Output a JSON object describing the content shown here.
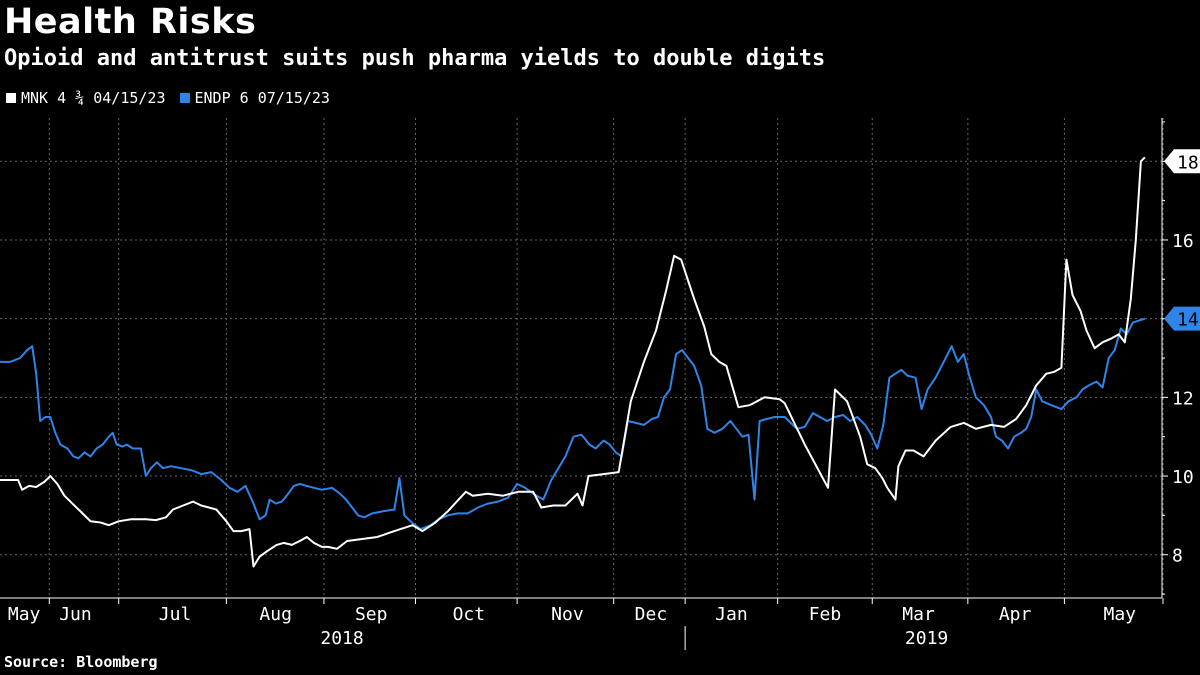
{
  "header": {
    "title": "Health Risks",
    "subtitle": "Opioid and antitrust suits push pharma yields to double digits"
  },
  "source": "Source: Bloomberg",
  "colors": {
    "background": "#000000",
    "mnk": "#ffffff",
    "endp": "#2f84e8",
    "grid": "#666666"
  },
  "chart_data": {
    "type": "line",
    "title": "Health Risks",
    "subtitle": "Opioid and antitrust suits push pharma yields to double digits",
    "xlabel": "",
    "ylabel": "",
    "ylim": [
      6.9,
      19.1
    ],
    "y_ticks": [
      8,
      10,
      12,
      14,
      16,
      18
    ],
    "x_range": [
      0,
      1155
    ],
    "month_ticks": [
      {
        "label": "May",
        "x": 24
      },
      {
        "label": "Jun",
        "x": 75
      },
      {
        "label": "Jul",
        "x": 174
      },
      {
        "label": "Aug",
        "x": 274
      },
      {
        "label": "Sep",
        "x": 369
      },
      {
        "label": "Oct",
        "x": 466
      },
      {
        "label": "Nov",
        "x": 564
      },
      {
        "label": "Dec",
        "x": 647
      },
      {
        "label": "Jan",
        "x": 727
      },
      {
        "label": "Feb",
        "x": 820
      },
      {
        "label": "Mar",
        "x": 913
      },
      {
        "label": "Apr",
        "x": 1009
      },
      {
        "label": "May",
        "x": 1113
      }
    ],
    "gridlines_x": [
      49,
      118,
      225,
      322,
      413,
      514,
      610,
      681,
      773,
      867,
      962,
      1058,
      1156
    ],
    "years": [
      {
        "label": "2018",
        "x": 340
      },
      {
        "label": "2019",
        "x": 921
      }
    ],
    "year_divider_x": 681,
    "series": [
      {
        "name": "MNK 4 ¾ 04/15/23",
        "color": "#ffffff",
        "end_label": "18",
        "points": [
          [
            0,
            9.9
          ],
          [
            18,
            9.9
          ],
          [
            22,
            9.65
          ],
          [
            29,
            9.75
          ],
          [
            36,
            9.72
          ],
          [
            44,
            9.85
          ],
          [
            50,
            10.0
          ],
          [
            57,
            9.8
          ],
          [
            64,
            9.5
          ],
          [
            72,
            9.3
          ],
          [
            80,
            9.1
          ],
          [
            90,
            8.85
          ],
          [
            100,
            8.82
          ],
          [
            108,
            8.75
          ],
          [
            118,
            8.85
          ],
          [
            130,
            8.9
          ],
          [
            145,
            8.9
          ],
          [
            155,
            8.88
          ],
          [
            165,
            8.95
          ],
          [
            172,
            9.15
          ],
          [
            182,
            9.25
          ],
          [
            192,
            9.35
          ],
          [
            200,
            9.25
          ],
          [
            215,
            9.15
          ],
          [
            225,
            8.85
          ],
          [
            232,
            8.6
          ],
          [
            240,
            8.6
          ],
          [
            248,
            8.65
          ],
          [
            252,
            7.7
          ],
          [
            258,
            7.95
          ],
          [
            266,
            8.1
          ],
          [
            275,
            8.25
          ],
          [
            282,
            8.3
          ],
          [
            290,
            8.25
          ],
          [
            298,
            8.35
          ],
          [
            305,
            8.45
          ],
          [
            312,
            8.3
          ],
          [
            320,
            8.2
          ],
          [
            326,
            8.2
          ],
          [
            335,
            8.15
          ],
          [
            345,
            8.35
          ],
          [
            360,
            8.4
          ],
          [
            375,
            8.45
          ],
          [
            392,
            8.6
          ],
          [
            410,
            8.75
          ],
          [
            420,
            8.6
          ],
          [
            432,
            8.8
          ],
          [
            445,
            9.1
          ],
          [
            463,
            9.6
          ],
          [
            470,
            9.5
          ],
          [
            485,
            9.55
          ],
          [
            500,
            9.5
          ],
          [
            515,
            9.6
          ],
          [
            530,
            9.6
          ],
          [
            538,
            9.2
          ],
          [
            550,
            9.25
          ],
          [
            562,
            9.25
          ],
          [
            574,
            9.55
          ],
          [
            579,
            9.25
          ],
          [
            585,
            10.0
          ],
          [
            600,
            10.05
          ],
          [
            615,
            10.1
          ],
          [
            627,
            11.9
          ],
          [
            640,
            12.9
          ],
          [
            652,
            13.7
          ],
          [
            662,
            14.7
          ],
          [
            670,
            15.6
          ],
          [
            677,
            15.5
          ],
          [
            690,
            14.5
          ],
          [
            700,
            13.8
          ],
          [
            707,
            13.1
          ],
          [
            715,
            12.9
          ],
          [
            722,
            12.8
          ],
          [
            734,
            11.75
          ],
          [
            745,
            11.8
          ],
          [
            760,
            12.0
          ],
          [
            775,
            11.95
          ],
          [
            780,
            11.85
          ],
          [
            800,
            10.8
          ],
          [
            823,
            9.7
          ],
          [
            830,
            12.2
          ],
          [
            842,
            11.9
          ],
          [
            855,
            11.0
          ],
          [
            862,
            10.3
          ],
          [
            870,
            10.2
          ],
          [
            877,
            9.95
          ],
          [
            882,
            9.7
          ],
          [
            890,
            9.4
          ],
          [
            893,
            10.25
          ],
          [
            900,
            10.65
          ],
          [
            908,
            10.65
          ],
          [
            918,
            10.5
          ],
          [
            930,
            10.9
          ],
          [
            945,
            11.25
          ],
          [
            958,
            11.35
          ],
          [
            970,
            11.2
          ],
          [
            985,
            11.3
          ],
          [
            998,
            11.25
          ],
          [
            1010,
            11.45
          ],
          [
            1020,
            11.8
          ],
          [
            1030,
            12.3
          ],
          [
            1040,
            12.6
          ],
          [
            1048,
            12.65
          ],
          [
            1055,
            12.75
          ],
          [
            1060,
            15.5
          ],
          [
            1066,
            14.6
          ],
          [
            1074,
            14.2
          ],
          [
            1080,
            13.7
          ],
          [
            1088,
            13.25
          ],
          [
            1096,
            13.4
          ],
          [
            1105,
            13.5
          ],
          [
            1112,
            13.6
          ],
          [
            1118,
            13.4
          ],
          [
            1124,
            14.5
          ],
          [
            1129,
            16.0
          ],
          [
            1134,
            18.0
          ],
          [
            1138,
            18.1
          ]
        ]
      },
      {
        "name": "ENDP 6 07/15/23",
        "color": "#2f84e8",
        "end_label": "14",
        "points": [
          [
            0,
            12.9
          ],
          [
            10,
            12.9
          ],
          [
            20,
            13.0
          ],
          [
            27,
            13.2
          ],
          [
            32,
            13.3
          ],
          [
            36,
            12.6
          ],
          [
            40,
            11.4
          ],
          [
            45,
            11.5
          ],
          [
            50,
            11.5
          ],
          [
            55,
            11.1
          ],
          [
            60,
            10.8
          ],
          [
            67,
            10.7
          ],
          [
            73,
            10.5
          ],
          [
            78,
            10.45
          ],
          [
            84,
            10.6
          ],
          [
            90,
            10.5
          ],
          [
            96,
            10.7
          ],
          [
            102,
            10.8
          ],
          [
            108,
            11.0
          ],
          [
            112,
            11.1
          ],
          [
            116,
            10.8
          ],
          [
            122,
            10.75
          ],
          [
            126,
            10.8
          ],
          [
            132,
            10.7
          ],
          [
            140,
            10.7
          ],
          [
            145,
            10.0
          ],
          [
            150,
            10.2
          ],
          [
            156,
            10.35
          ],
          [
            162,
            10.2
          ],
          [
            170,
            10.25
          ],
          [
            180,
            10.2
          ],
          [
            190,
            10.15
          ],
          [
            200,
            10.05
          ],
          [
            210,
            10.1
          ],
          [
            220,
            9.9
          ],
          [
            228,
            9.7
          ],
          [
            236,
            9.6
          ],
          [
            244,
            9.75
          ],
          [
            252,
            9.3
          ],
          [
            258,
            8.9
          ],
          [
            264,
            9.0
          ],
          [
            268,
            9.4
          ],
          [
            274,
            9.3
          ],
          [
            280,
            9.35
          ],
          [
            285,
            9.5
          ],
          [
            292,
            9.75
          ],
          [
            298,
            9.8
          ],
          [
            305,
            9.75
          ],
          [
            312,
            9.7
          ],
          [
            320,
            9.65
          ],
          [
            330,
            9.7
          ],
          [
            338,
            9.55
          ],
          [
            344,
            9.4
          ],
          [
            350,
            9.2
          ],
          [
            356,
            9.0
          ],
          [
            362,
            8.95
          ],
          [
            370,
            9.05
          ],
          [
            380,
            9.1
          ],
          [
            392,
            9.15
          ],
          [
            397,
            9.95
          ],
          [
            402,
            9.0
          ],
          [
            410,
            8.8
          ],
          [
            418,
            8.65
          ],
          [
            428,
            8.75
          ],
          [
            436,
            8.9
          ],
          [
            445,
            9.0
          ],
          [
            455,
            9.05
          ],
          [
            465,
            9.05
          ],
          [
            475,
            9.2
          ],
          [
            485,
            9.3
          ],
          [
            495,
            9.35
          ],
          [
            505,
            9.45
          ],
          [
            514,
            9.8
          ],
          [
            522,
            9.7
          ],
          [
            530,
            9.55
          ],
          [
            540,
            9.4
          ],
          [
            548,
            9.9
          ],
          [
            555,
            10.2
          ],
          [
            562,
            10.5
          ],
          [
            570,
            11.0
          ],
          [
            578,
            11.05
          ],
          [
            586,
            10.8
          ],
          [
            592,
            10.7
          ],
          [
            600,
            10.9
          ],
          [
            606,
            10.8
          ],
          [
            612,
            10.6
          ],
          [
            618,
            10.5
          ],
          [
            624,
            11.4
          ],
          [
            632,
            11.35
          ],
          [
            640,
            11.3
          ],
          [
            648,
            11.45
          ],
          [
            654,
            11.5
          ],
          [
            660,
            12.0
          ],
          [
            666,
            12.2
          ],
          [
            672,
            13.1
          ],
          [
            678,
            13.2
          ],
          [
            684,
            13.0
          ],
          [
            690,
            12.8
          ],
          [
            697,
            12.3
          ],
          [
            703,
            11.2
          ],
          [
            710,
            11.1
          ],
          [
            718,
            11.2
          ],
          [
            726,
            11.4
          ],
          [
            732,
            11.2
          ],
          [
            738,
            11.0
          ],
          [
            744,
            11.05
          ],
          [
            750,
            9.4
          ],
          [
            755,
            11.4
          ],
          [
            762,
            11.45
          ],
          [
            770,
            11.5
          ],
          [
            780,
            11.5
          ],
          [
            792,
            11.2
          ],
          [
            800,
            11.25
          ],
          [
            808,
            11.6
          ],
          [
            815,
            11.5
          ],
          [
            822,
            11.4
          ],
          [
            830,
            11.5
          ],
          [
            838,
            11.55
          ],
          [
            845,
            11.4
          ],
          [
            852,
            11.5
          ],
          [
            860,
            11.3
          ],
          [
            866,
            11.05
          ],
          [
            872,
            10.7
          ],
          [
            878,
            11.3
          ],
          [
            884,
            12.5
          ],
          [
            890,
            12.6
          ],
          [
            896,
            12.7
          ],
          [
            902,
            12.55
          ],
          [
            910,
            12.5
          ],
          [
            916,
            11.7
          ],
          [
            922,
            12.2
          ],
          [
            930,
            12.5
          ],
          [
            938,
            12.9
          ],
          [
            946,
            13.3
          ],
          [
            952,
            12.9
          ],
          [
            958,
            13.1
          ],
          [
            964,
            12.5
          ],
          [
            970,
            12.0
          ],
          [
            978,
            11.8
          ],
          [
            985,
            11.5
          ],
          [
            990,
            11.0
          ],
          [
            996,
            10.9
          ],
          [
            1002,
            10.7
          ],
          [
            1008,
            11.0
          ],
          [
            1015,
            11.1
          ],
          [
            1020,
            11.2
          ],
          [
            1025,
            11.5
          ],
          [
            1030,
            12.2
          ],
          [
            1036,
            11.9
          ],
          [
            1045,
            11.8
          ],
          [
            1055,
            11.7
          ],
          [
            1062,
            11.9
          ],
          [
            1070,
            12.0
          ],
          [
            1076,
            12.2
          ],
          [
            1082,
            12.3
          ],
          [
            1090,
            12.4
          ],
          [
            1096,
            12.25
          ],
          [
            1102,
            13.0
          ],
          [
            1108,
            13.2
          ],
          [
            1114,
            13.75
          ],
          [
            1120,
            13.6
          ],
          [
            1126,
            13.9
          ],
          [
            1132,
            13.95
          ],
          [
            1138,
            14.0
          ]
        ]
      }
    ]
  }
}
